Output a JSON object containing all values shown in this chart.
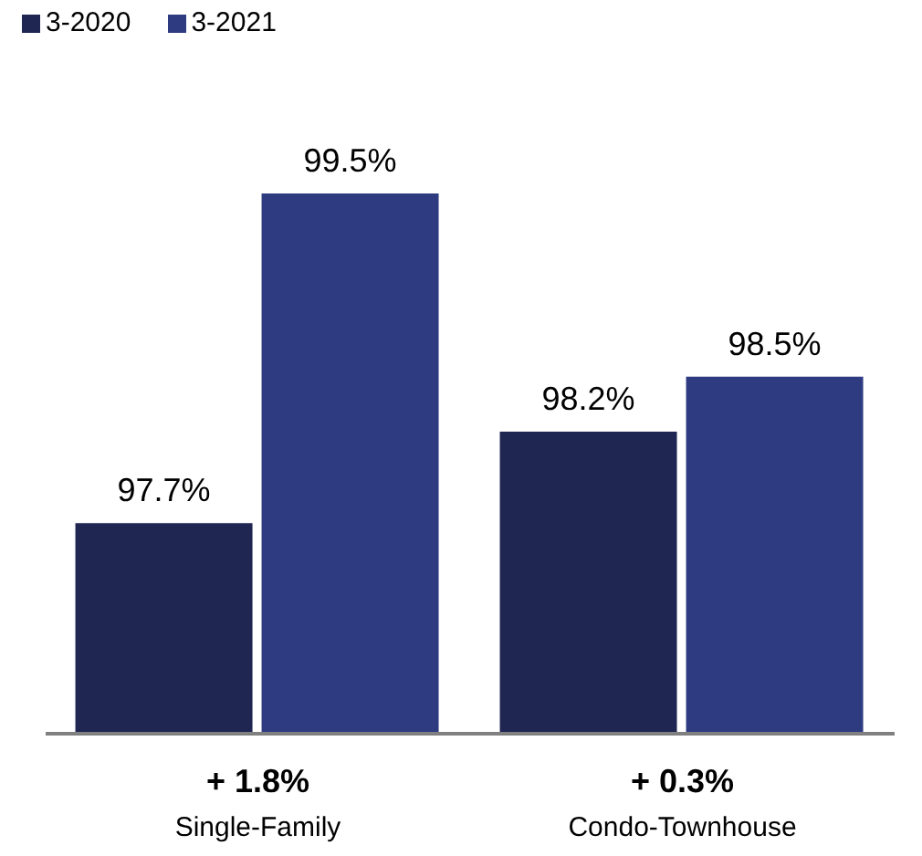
{
  "chart_data": {
    "type": "bar",
    "categories": [
      "Single-Family",
      "Condo-Townhouse"
    ],
    "series": [
      {
        "name": "3-2020",
        "color": "#1f2651",
        "values": [
          97.7,
          98.2
        ],
        "value_labels": [
          "97.7%",
          "98.2%"
        ]
      },
      {
        "name": "3-2021",
        "color": "#2e3b80",
        "values": [
          99.5,
          98.5
        ],
        "value_labels": [
          "99.5%",
          "98.5%"
        ]
      }
    ],
    "ylim": [
      96.55,
      99.5
    ],
    "legend": "top left",
    "annotations": [
      "+ 1.8%",
      "+ 0.3%"
    ]
  }
}
